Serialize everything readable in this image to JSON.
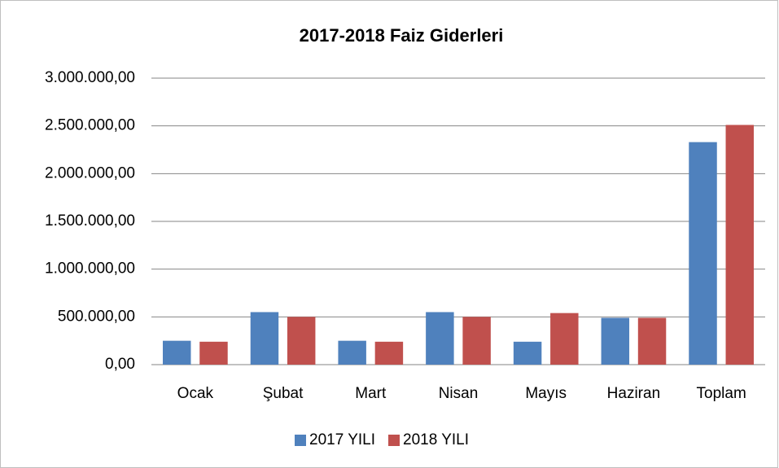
{
  "chart_data": {
    "type": "bar",
    "title": "2017-2018 Faiz Giderleri",
    "categories": [
      "Ocak",
      "Şubat",
      "Mart",
      "Nisan",
      "Mayıs",
      "Haziran",
      "Toplam"
    ],
    "series": [
      {
        "name": "2017 YILI",
        "color": "#4f81bd",
        "values": [
          250000,
          550000,
          250000,
          550000,
          240000,
          490000,
          2330000
        ]
      },
      {
        "name": "2018 YILI",
        "color": "#c0504d",
        "values": [
          240000,
          500000,
          240000,
          500000,
          540000,
          490000,
          2510000
        ]
      }
    ],
    "ylim": [
      0,
      3000000
    ],
    "yticks": [
      {
        "value": 0,
        "label": "0,00"
      },
      {
        "value": 500000,
        "label": "500.000,00"
      },
      {
        "value": 1000000,
        "label": "1.000.000,00"
      },
      {
        "value": 1500000,
        "label": "1.500.000,00"
      },
      {
        "value": 2000000,
        "label": "2.000.000,00"
      },
      {
        "value": 2500000,
        "label": "2.500.000,00"
      },
      {
        "value": 3000000,
        "label": "3.000.000,00"
      }
    ],
    "grid": true,
    "legend": "bottom"
  }
}
